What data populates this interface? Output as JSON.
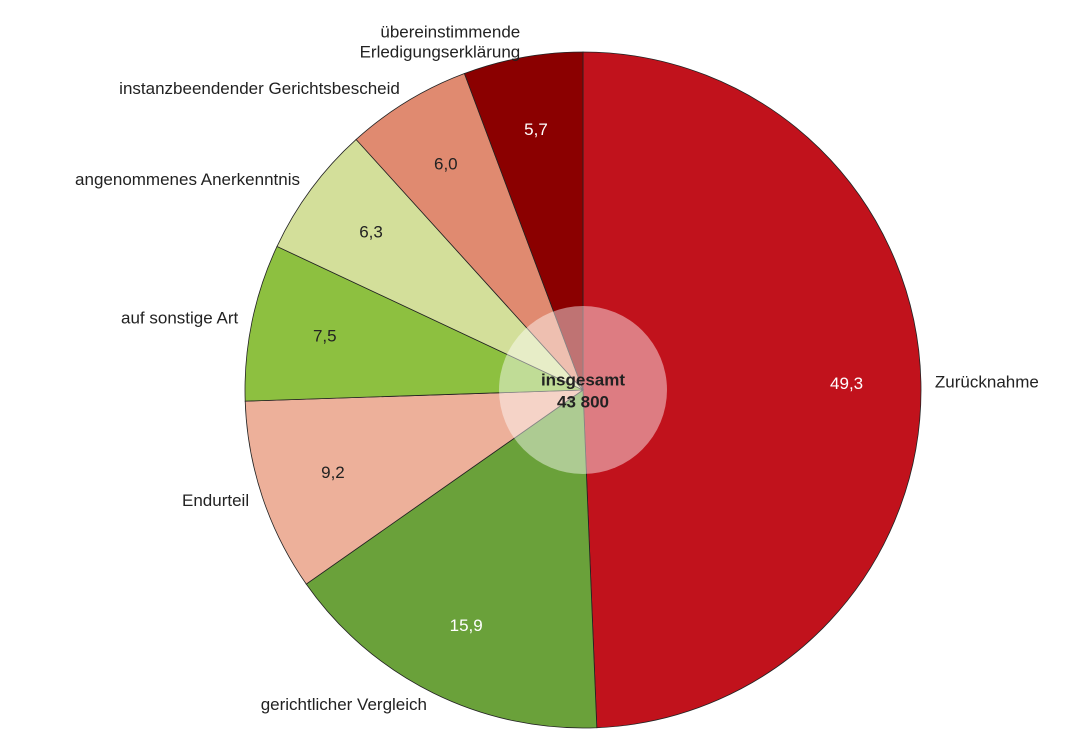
{
  "chart_data": {
    "type": "pie",
    "categories": [
      "Zurücknahme",
      "gerichtlicher Vergleich",
      "Endurteil",
      "auf sonstige Art",
      "angenommenes Anerkenntnis",
      "instanzbeendender Gerichtsbescheid",
      "übereinstimmende\nErledigungserklärung"
    ],
    "values": [
      49.3,
      15.9,
      9.2,
      7.5,
      6.3,
      6.0,
      5.7
    ],
    "value_labels": [
      "49,3",
      "15,9",
      "9,2",
      "7,5",
      "6,3",
      "6,0",
      "5,7"
    ],
    "colors": [
      "#c1121c",
      "#6aa13a",
      "#edb09a",
      "#8dc040",
      "#d3df9a",
      "#e08a70",
      "#8b0000"
    ],
    "center_title": "insgesamt",
    "total": {
      "value": 43800,
      "label": "43 800"
    }
  }
}
